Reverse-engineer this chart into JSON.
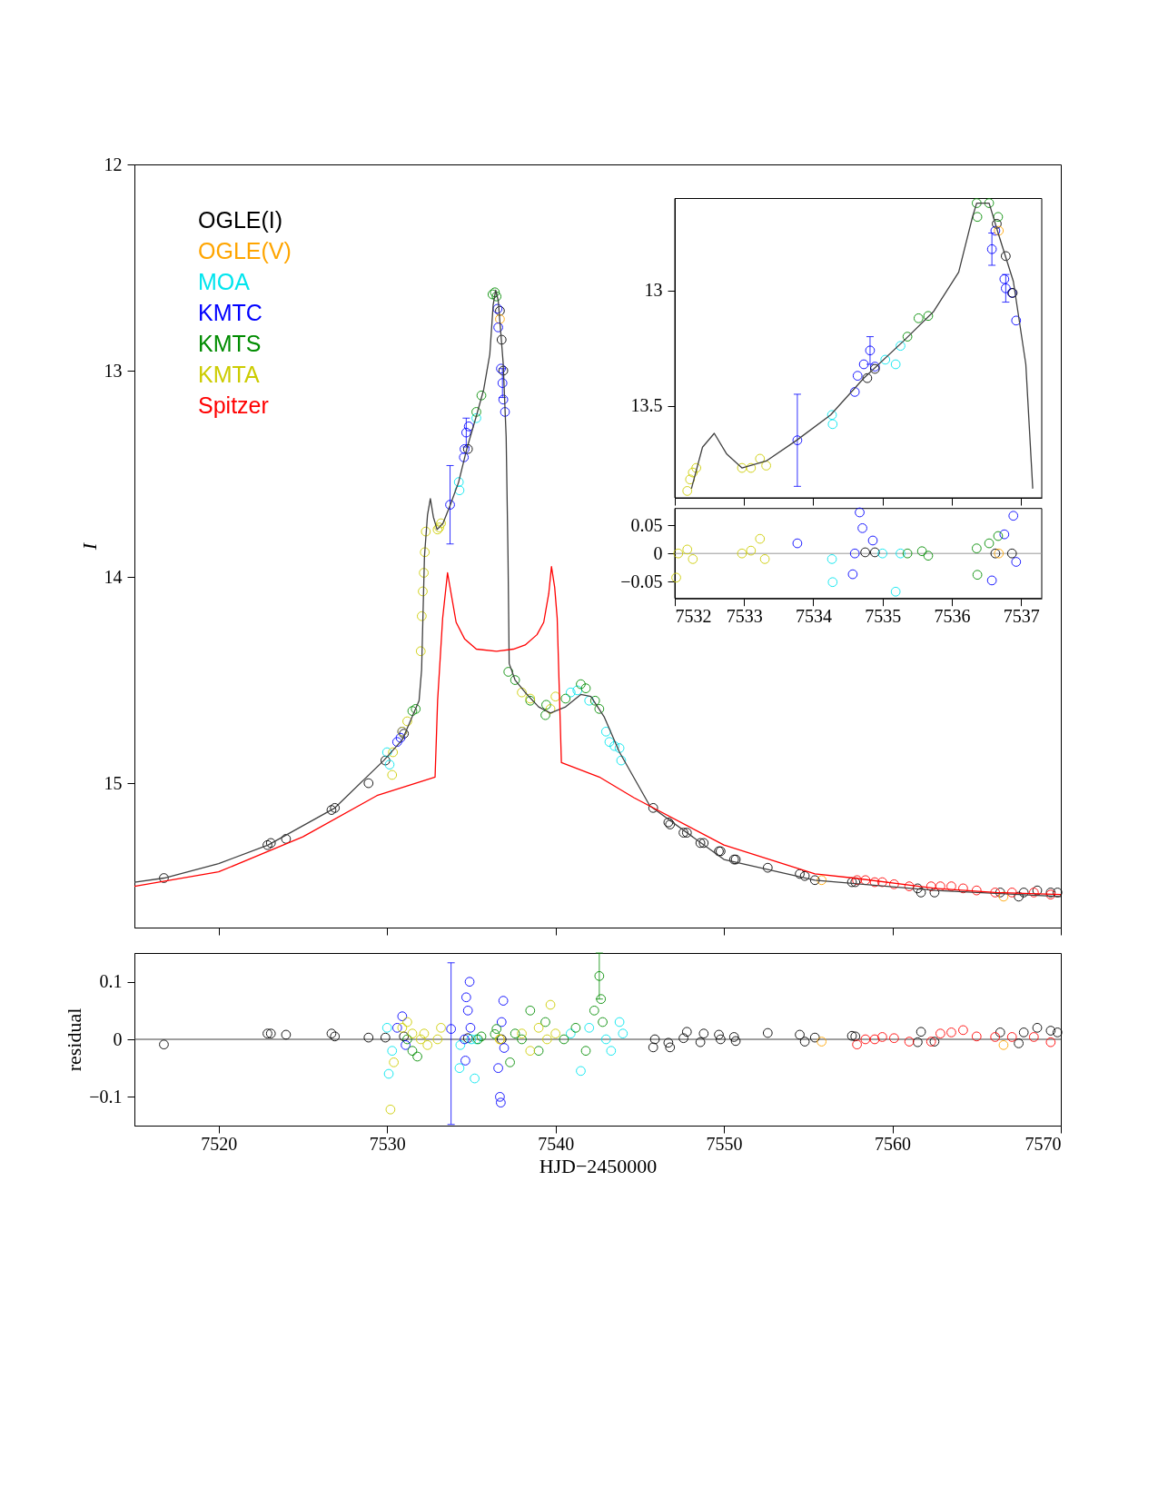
{
  "chart_data": [
    {
      "type": "scatter",
      "ylabel": "I",
      "xlim": [
        7515,
        7570
      ],
      "ylim": [
        15.7,
        12
      ],
      "xticks": [
        7520,
        7530,
        7540,
        7550,
        7560,
        7570
      ],
      "yticks": [
        12,
        13,
        14,
        15
      ],
      "tick_labels": "y",
      "grid": false,
      "legend": "top left",
      "marker": "circle",
      "series": [
        {
          "name": "OGLE(I)",
          "color": "#000000",
          "x": [
            7516.75,
            7522.9,
            7523.1,
            7524.0,
            7526.7,
            7526.9,
            7528.9,
            7529.9,
            7531.0,
            7534.8,
            7536.7,
            7536.8,
            7536.9,
            7545.8,
            7546.7,
            7546.8,
            7547.6,
            7547.8,
            7548.6,
            7548.8,
            7549.7,
            7549.8,
            7550.6,
            7550.7,
            7552.6,
            7554.5,
            7554.8,
            7555.4,
            7557.6,
            7557.8,
            7561.5,
            7561.7,
            7562.5,
            7566.4,
            7567.5,
            7567.8,
            7568.6,
            7569.4,
            7569.8
          ],
          "values": [
            15.46,
            15.3,
            15.29,
            15.27,
            15.13,
            15.12,
            15.0,
            14.89,
            14.76,
            13.38,
            12.71,
            12.85,
            13.0,
            15.12,
            15.19,
            15.2,
            15.24,
            15.24,
            15.29,
            15.29,
            15.33,
            15.33,
            15.37,
            15.37,
            15.41,
            15.44,
            15.45,
            15.47,
            15.48,
            15.48,
            15.51,
            15.53,
            15.53,
            15.53,
            15.55,
            15.53,
            15.52,
            15.53,
            15.53
          ]
        },
        {
          "name": "OGLE(V)",
          "color": "#ffa500",
          "x": [
            7536.7,
            7555.8,
            7566.6
          ],
          "values": [
            12.75,
            15.47,
            15.55
          ]
        },
        {
          "name": "MOA",
          "color": "#00e5ee",
          "x": [
            7530.0,
            7530.15,
            7534.26,
            7534.3,
            7535.3,
            7540.9,
            7541.3,
            7542.0,
            7543.0,
            7543.2,
            7543.5,
            7543.8,
            7543.9
          ],
          "values": [
            14.85,
            14.91,
            13.54,
            13.58,
            13.23,
            14.56,
            14.55,
            14.6,
            14.75,
            14.8,
            14.82,
            14.83,
            14.89
          ]
        },
        {
          "name": "KMTC",
          "color": "#0000ff",
          "x": [
            7530.6,
            7530.8,
            7530.9,
            7533.74,
            7534.56,
            7534.6,
            7534.7,
            7534.85,
            7536.56,
            7536.6,
            7536.76,
            7536.85,
            7536.9,
            7537.0
          ],
          "values": [
            14.8,
            14.78,
            14.75,
            13.65,
            13.42,
            13.38,
            13.3,
            13.27,
            12.7,
            12.79,
            12.99,
            13.06,
            13.14,
            13.2
          ],
          "errors": [
            null,
            null,
            null,
            0.19,
            null,
            null,
            0.07,
            null,
            null,
            null,
            null,
            0.07,
            null,
            null
          ]
        },
        {
          "name": "KMTS",
          "color": "#008c00",
          "x": [
            7531.5,
            7531.7,
            7535.3,
            7535.6,
            7536.26,
            7536.4,
            7536.5,
            7537.2,
            7537.6,
            7538.5,
            7539.4,
            7539.45,
            7540.6,
            7541.5,
            7541.8,
            7542.35,
            7542.6
          ],
          "values": [
            14.65,
            14.64,
            13.2,
            13.12,
            12.63,
            12.62,
            12.64,
            14.46,
            14.5,
            14.6,
            14.67,
            14.62,
            14.59,
            14.52,
            14.54,
            14.6,
            14.64
          ]
        },
        {
          "name": "KMTA",
          "color": "#cccc00",
          "x": [
            7530.3,
            7530.35,
            7530.9,
            7531.2,
            7532.0,
            7532.06,
            7532.12,
            7532.18,
            7532.24,
            7532.3,
            7533.0,
            7533.1,
            7533.2,
            7538.0,
            7538.5,
            7539.7,
            7540.0
          ],
          "values": [
            14.96,
            14.85,
            14.75,
            14.7,
            14.36,
            14.19,
            14.07,
            13.98,
            13.88,
            13.78,
            13.77,
            13.76,
            13.74,
            14.56,
            14.59,
            14.64,
            14.58
          ]
        },
        {
          "name": "Spitzer",
          "color": "#ff0000",
          "x": [
            7557.9,
            7558.4,
            7558.95,
            7559.4,
            7560.1,
            7561.0,
            7562.3,
            7562.85,
            7563.5,
            7564.2,
            7565.0,
            7566.1,
            7567.1,
            7568.4,
            7569.4
          ],
          "values": [
            15.47,
            15.47,
            15.48,
            15.48,
            15.49,
            15.5,
            15.5,
            15.5,
            15.5,
            15.51,
            15.52,
            15.53,
            15.53,
            15.53,
            15.54
          ]
        },
        {
          "type": "line",
          "line_style": "solid",
          "marker": "none",
          "color": "#404040",
          "x": [
            7515.0,
            7516.76,
            7520,
            7522.94,
            7526.9,
            7529.8,
            7530.9,
            7531.9,
            7532.05,
            7532.22,
            7532.4,
            7532.57,
            7532.75,
            7532.97,
            7533.32,
            7533.76,
            7534.25,
            7534.73,
            7535.3,
            7535.74,
            7536.1,
            7536.3,
            7536.45,
            7536.6,
            7536.89,
            7537.07,
            7537.18,
            7537.25,
            7537.6,
            7538.2,
            7539.0,
            7539.7,
            7540.6,
            7541.5,
            7542.1,
            7542.9,
            7543.8,
            7545.6,
            7550.0,
            7555.4,
            7562.55,
            7570
          ],
          "values": [
            15.48,
            15.46,
            15.39,
            15.3,
            15.12,
            14.89,
            14.79,
            14.6,
            14.45,
            13.9,
            13.7,
            13.62,
            13.71,
            13.77,
            13.74,
            13.65,
            13.54,
            13.38,
            13.22,
            13.09,
            12.92,
            12.68,
            12.61,
            12.66,
            12.96,
            13.32,
            13.9,
            14.42,
            14.5,
            14.56,
            14.63,
            14.66,
            14.63,
            14.57,
            14.58,
            14.68,
            14.85,
            15.11,
            15.37,
            15.47,
            15.52,
            15.55
          ]
        },
        {
          "type": "line",
          "line_style": "solid",
          "marker": "none",
          "color": "#ff0000",
          "x": [
            7515.0,
            7520,
            7525,
            7529.4,
            7532.85,
            7533.0,
            7533.3,
            7533.59,
            7533.8,
            7534.1,
            7534.6,
            7535.3,
            7536.5,
            7537.5,
            7538.2,
            7538.9,
            7539.3,
            7539.6,
            7539.76,
            7539.95,
            7540.1,
            7540.35,
            7542.6,
            7544.65,
            7550.0,
            7555.4,
            7557.7,
            7562.55,
            7566.1,
            7570
          ],
          "values": [
            15.5,
            15.43,
            15.26,
            15.06,
            14.97,
            14.6,
            14.2,
            13.98,
            14.08,
            14.22,
            14.3,
            14.35,
            14.36,
            14.35,
            14.33,
            14.28,
            14.22,
            14.08,
            13.95,
            14.05,
            14.2,
            14.9,
            14.97,
            15.07,
            15.3,
            15.44,
            15.46,
            15.51,
            15.53,
            15.54
          ]
        }
      ]
    },
    {
      "type": "scatter",
      "xlabel": "HJD−2450000",
      "ylabel": "residual",
      "xlim": [
        7515,
        7570
      ],
      "ylim": [
        -0.15,
        0.15
      ],
      "xticks": [
        7520,
        7530,
        7540,
        7550,
        7560,
        7570
      ],
      "yticks": [
        0.1,
        0,
        {
          "value": -0.1,
          "label": "−0.1"
        }
      ],
      "grid": false,
      "marker": "circle",
      "ref_lines": [
        {
          "axis": "y",
          "value": 0,
          "color": "#404040"
        }
      ],
      "series": [
        {
          "color": "#000000",
          "x": [
            7516.75,
            7522.9,
            7523.1,
            7524.0,
            7526.7,
            7526.9,
            7528.9,
            7529.9,
            7531.0,
            7534.8,
            7536.8,
            7545.8,
            7545.9,
            7546.7,
            7546.8,
            7547.6,
            7547.8,
            7548.6,
            7548.8,
            7549.7,
            7549.8,
            7550.6,
            7550.7,
            7552.6,
            7554.5,
            7554.8,
            7555.4,
            7557.6,
            7557.8,
            7561.5,
            7561.7,
            7562.5,
            7566.4,
            7567.5,
            7567.8,
            7568.6,
            7569.4,
            7569.8
          ],
          "values": [
            -0.009,
            0.01,
            0.01,
            0.008,
            0.01,
            0.005,
            0.003,
            0.003,
            0.005,
            0.002,
            0,
            -0.014,
            0,
            -0.006,
            -0.014,
            0.002,
            0.013,
            -0.005,
            0.01,
            0.008,
            0,
            0.004,
            -0.003,
            0.011,
            0.008,
            -0.004,
            0.003,
            0.006,
            0.005,
            -0.005,
            0.013,
            -0.004,
            0.012,
            -0.007,
            0.012,
            0.02,
            0.015,
            0.012
          ]
        },
        {
          "color": "#ffa500",
          "x": [
            7536.7,
            7555.8,
            7566.6
          ],
          "values": [
            0,
            -0.004,
            -0.01
          ]
        },
        {
          "color": "#00e5ee",
          "x": [
            7530.0,
            7530.1,
            7530.3,
            7534.3,
            7534.35,
            7535.0,
            7535.2,
            7535.3,
            7540.9,
            7541.5,
            7542.0,
            7543.0,
            7543.3,
            7543.8,
            7544.0
          ],
          "values": [
            0.02,
            -0.06,
            -0.02,
            -0.05,
            -0.01,
            0.0,
            -0.068,
            0.0,
            0.01,
            -0.055,
            0.02,
            0.0,
            -0.02,
            0.03,
            0.01
          ]
        },
        {
          "color": "#0000ff",
          "x": [
            7530.6,
            7530.9,
            7531.1,
            7533.8,
            7534.6,
            7534.65,
            7534.7,
            7534.8,
            7534.9,
            7534.95,
            7536.6,
            7536.7,
            7536.8,
            7536.9,
            7536.95,
            7536.75
          ],
          "values": [
            0.02,
            0.04,
            -0.01,
            0.018,
            0.0,
            -0.037,
            0.073,
            0.05,
            0.1,
            0.02,
            -0.05,
            -0.1,
            0.03,
            0.067,
            -0.015,
            -0.11
          ],
          "errors": [
            null,
            null,
            null,
            [
              -0.148,
              0.133
            ],
            null,
            null,
            null,
            null,
            null,
            null,
            null,
            null,
            null,
            null,
            null,
            null
          ]
        },
        {
          "color": "#008c00",
          "x": [
            7531.2,
            7531.5,
            7531.8,
            7535.4,
            7535.6,
            7536.4,
            7536.5,
            7537.3,
            7537.6,
            7538.0,
            7538.5,
            7539.0,
            7539.4,
            7540.5,
            7541.2,
            7541.8,
            7542.3,
            7542.6,
            7542.7,
            7542.8
          ],
          "values": [
            0.0,
            -0.02,
            -0.03,
            0.0,
            0.005,
            0.009,
            0.018,
            -0.04,
            0.01,
            0.0,
            0.05,
            -0.02,
            0.03,
            0.0,
            0.02,
            -0.02,
            0.05,
            0.11,
            0.07,
            0.03
          ],
          "errors": [
            null,
            null,
            null,
            null,
            null,
            null,
            null,
            null,
            null,
            null,
            null,
            null,
            null,
            null,
            null,
            null,
            null,
            [
              0.07,
              0.15
            ],
            null,
            null
          ]
        },
        {
          "color": "#cccc00",
          "x": [
            7530.2,
            7530.4,
            7530.9,
            7531.2,
            7531.5,
            7532.0,
            7532.2,
            7532.4,
            7533.0,
            7533.2,
            7536.7,
            7538.0,
            7538.5,
            7539.0,
            7539.5,
            7539.7,
            7540.0
          ],
          "values": [
            -0.122,
            -0.04,
            0.02,
            0.03,
            0.01,
            0.0,
            0.01,
            -0.01,
            0.0,
            0.02,
            0.0,
            0.01,
            -0.02,
            0.02,
            0.0,
            0.06,
            0.01
          ]
        },
        {
          "color": "#ff0000",
          "x": [
            7557.9,
            7558.4,
            7558.95,
            7559.4,
            7560.1,
            7561.0,
            7562.3,
            7562.85,
            7563.5,
            7564.2,
            7565.0,
            7566.1,
            7567.1,
            7568.4,
            7569.4
          ],
          "values": [
            -0.009,
            0,
            0,
            0.004,
            0.002,
            -0.004,
            -0.004,
            0.01,
            0.012,
            0.016,
            0.005,
            0.004,
            0.004,
            0.004,
            -0.005
          ]
        }
      ]
    },
    {
      "type": "scatter",
      "xlim": [
        7532,
        7537.3
      ],
      "ylim": [
        13.9,
        12.6
      ],
      "xticks": [
        7532,
        7533,
        7534,
        7535,
        7536,
        7537
      ],
      "yticks": [
        13,
        13.5
      ],
      "tick_labels": "y",
      "grid": false,
      "marker": "circle",
      "series": [
        {
          "color": "#cccc00",
          "x": [
            7532.18,
            7532.22,
            7532.26,
            7532.31,
            7532.97,
            7533.1,
            7533.23,
            7533.32
          ],
          "values": [
            13.87,
            13.82,
            13.79,
            13.77,
            13.77,
            13.77,
            13.73,
            13.76
          ]
        },
        {
          "color": "#0000ff",
          "x": [
            7533.77,
            7534.6,
            7534.64,
            7534.73,
            7534.82,
            7534.89,
            7536.58,
            7536.63,
            7536.76,
            7536.78,
            7536.87,
            7536.93
          ],
          "values": [
            13.65,
            13.44,
            13.37,
            13.32,
            13.26,
            13.33,
            12.82,
            12.74,
            12.95,
            12.99,
            13.01,
            13.13
          ],
          "errors": [
            0.2,
            null,
            null,
            null,
            0.06,
            null,
            0.07,
            null,
            null,
            0.06,
            null,
            null
          ]
        },
        {
          "color": "#000000",
          "x": [
            7534.78,
            7534.89,
            7536.65,
            7536.78,
            7536.88
          ],
          "values": [
            13.38,
            13.34,
            12.71,
            12.85,
            13.01
          ]
        },
        {
          "color": "#ffa500",
          "x": [
            7536.68
          ],
          "values": [
            12.74
          ]
        },
        {
          "color": "#00e5ee",
          "x": [
            7534.27,
            7534.28,
            7535.04,
            7535.19,
            7535.26
          ],
          "values": [
            13.54,
            13.58,
            13.3,
            13.32,
            13.24
          ]
        },
        {
          "color": "#008c00",
          "x": [
            7535.36,
            7535.52,
            7535.66,
            7536.36,
            7536.37,
            7536.54,
            7536.67
          ],
          "values": [
            13.2,
            13.12,
            13.11,
            12.62,
            12.68,
            12.62,
            12.68
          ]
        },
        {
          "type": "line",
          "line_style": "solid",
          "marker": "none",
          "color": "#404040",
          "x": [
            7532.24,
            7532.4,
            7532.57,
            7532.75,
            7532.97,
            7533.32,
            7533.76,
            7534.25,
            7534.73,
            7535.3,
            7535.74,
            7536.1,
            7536.3,
            7536.36,
            7536.54,
            7536.67,
            7536.89,
            7537.07,
            7537.17
          ],
          "values": [
            13.86,
            13.68,
            13.62,
            13.71,
            13.77,
            13.74,
            13.65,
            13.54,
            13.38,
            13.22,
            13.09,
            12.92,
            12.68,
            12.62,
            12.62,
            12.75,
            12.96,
            13.32,
            13.86
          ]
        }
      ]
    },
    {
      "type": "scatter",
      "xlim": [
        7532,
        7537.3
      ],
      "ylim": [
        -0.08,
        0.08
      ],
      "xticks": [
        7532,
        7533,
        7534,
        7535,
        7536,
        7537
      ],
      "yticks": [
        0.05,
        0,
        {
          "value": -0.05,
          "label": "−0.05"
        }
      ],
      "grid": false,
      "marker": "circle",
      "ref_lines": [
        {
          "axis": "y",
          "value": 0,
          "color": "#999999"
        }
      ],
      "series": [
        {
          "color": "#cccc00",
          "x": [
            7532.02,
            7532.05,
            7532.18,
            7532.26,
            7532.97,
            7533.1,
            7533.23,
            7533.3
          ],
          "values": [
            -0.043,
            0,
            0.007,
            -0.01,
            0,
            0.005,
            0.026,
            -0.01
          ]
        },
        {
          "color": "#0000ff",
          "x": [
            7533.77,
            7534.6,
            7534.57,
            7534.67,
            7534.71,
            7534.86,
            7536.58,
            7536.76,
            7536.89,
            7536.93
          ],
          "values": [
            0.018,
            0,
            -0.037,
            0.073,
            0.045,
            0.023,
            -0.048,
            0.034,
            0.067,
            -0.015
          ]
        },
        {
          "color": "#000000",
          "x": [
            7534.75,
            7534.89,
            7536.63,
            7536.87
          ],
          "values": [
            0.002,
            0.002,
            0,
            0
          ]
        },
        {
          "color": "#ffa500",
          "x": [
            7536.68
          ],
          "values": [
            0
          ]
        },
        {
          "color": "#00e5ee",
          "x": [
            7534.27,
            7534.28,
            7535.0,
            7535.19,
            7535.26
          ],
          "values": [
            -0.01,
            -0.051,
            0,
            -0.068,
            0
          ]
        },
        {
          "color": "#008c00",
          "x": [
            7535.36,
            7535.57,
            7535.66,
            7536.36,
            7536.37,
            7536.54,
            7536.67
          ],
          "values": [
            0,
            0.004,
            -0.004,
            0.009,
            -0.038,
            0.018,
            0.031
          ]
        }
      ]
    }
  ]
}
